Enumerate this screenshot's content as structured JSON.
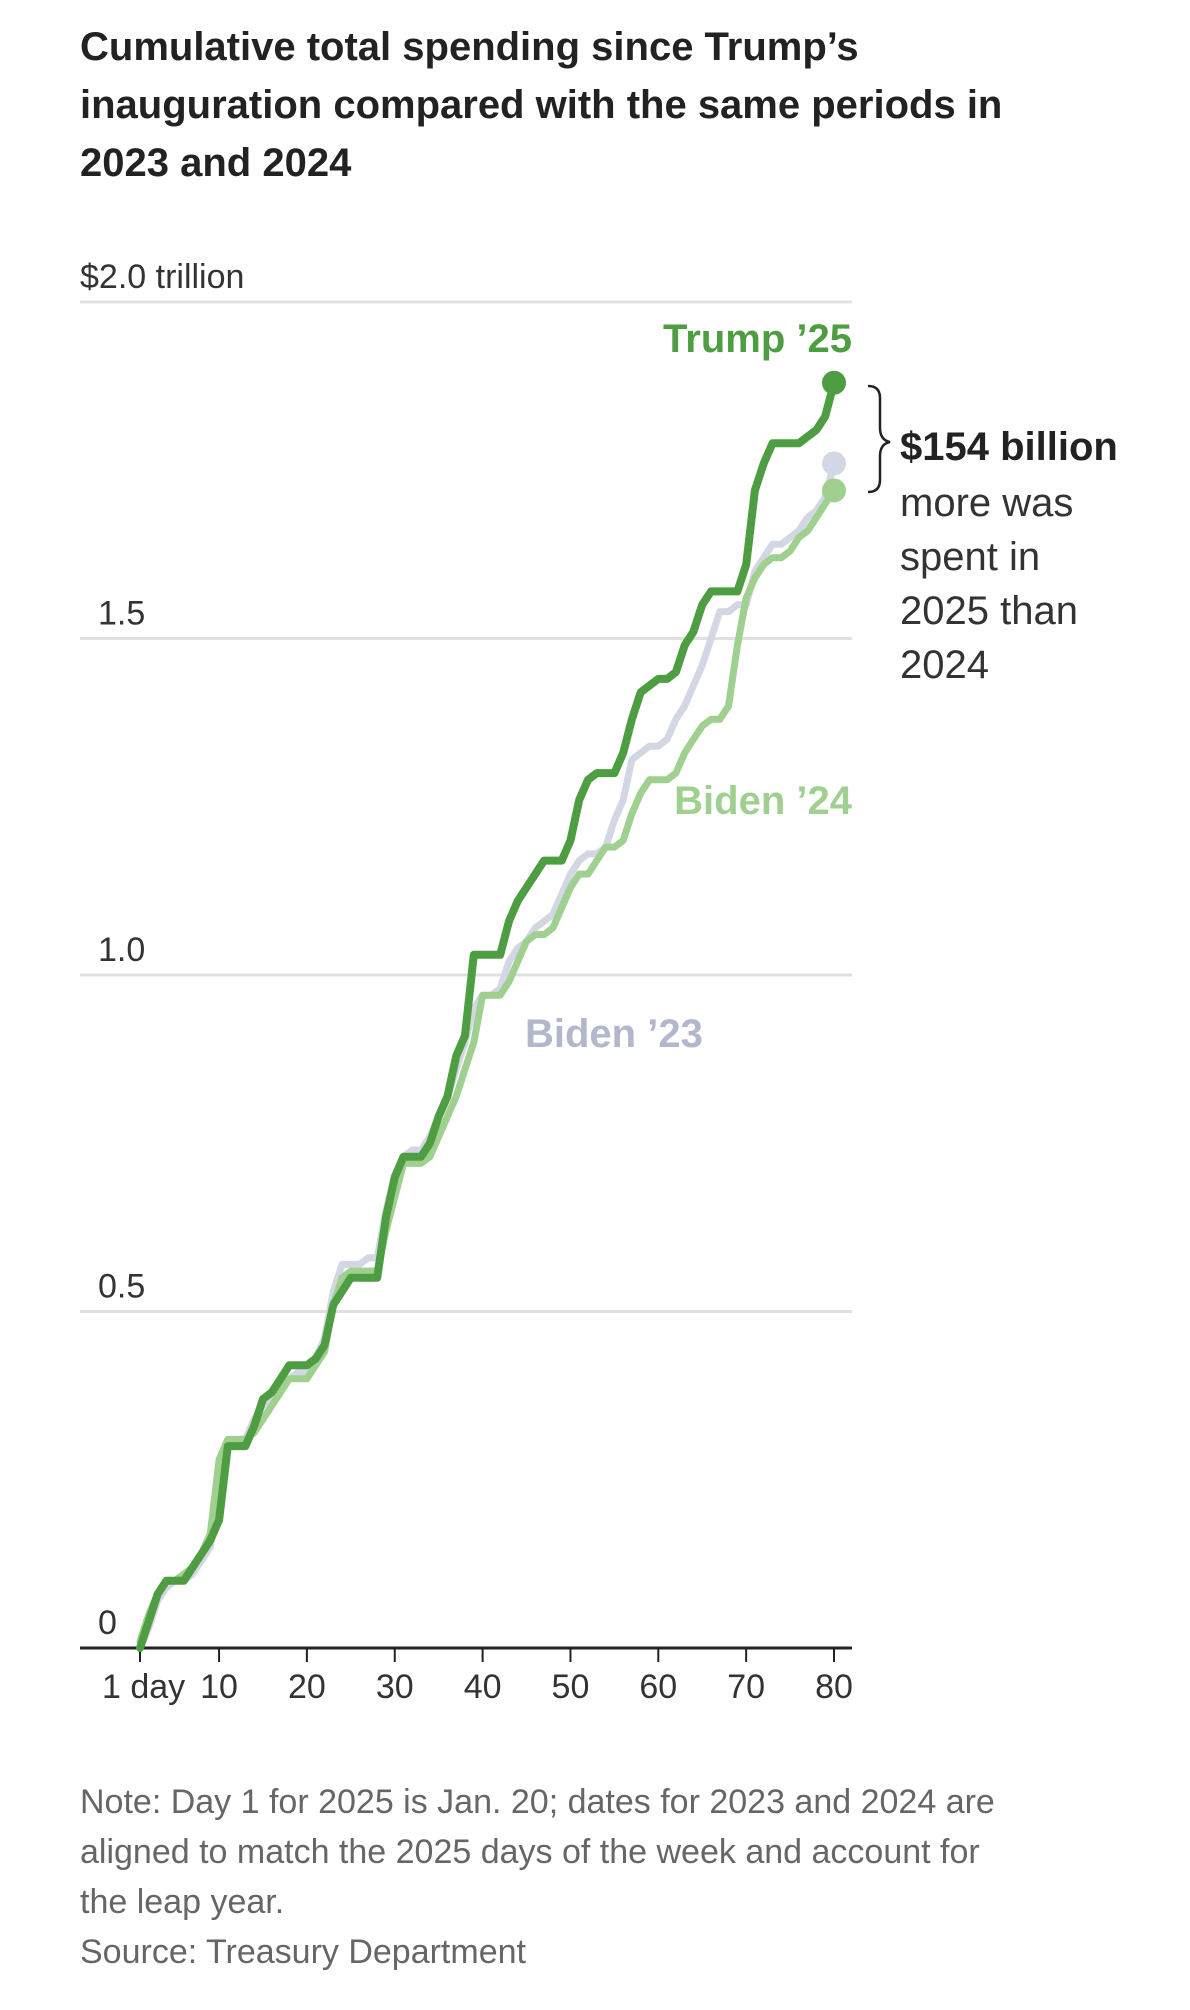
{
  "colors": {
    "trump": "#4f9d43",
    "biden24": "#9fd08f",
    "biden23": "#d3d7e3",
    "biden23_label": "#b2b7cc",
    "grid": "#e0e0e0",
    "axis": "#222222"
  },
  "chart_data": {
    "type": "line",
    "title_lines": [
      "Cumulative total spending since Trump’s",
      "inauguration compared with the same periods in",
      "2023 and 2024"
    ],
    "ylabel": "$2.0 trillion",
    "ylim": [
      0,
      2.0
    ],
    "yticks": [
      {
        "value": 0,
        "label": "0"
      },
      {
        "value": 0.5,
        "label": "0.5"
      },
      {
        "value": 1.0,
        "label": "1.0"
      },
      {
        "value": 1.5,
        "label": "1.5"
      },
      {
        "value": 2.0,
        "label": "$2.0 trillion"
      }
    ],
    "xlim": [
      1,
      81
    ],
    "xticks": [
      {
        "value": 1,
        "label": "1 day"
      },
      {
        "value": 10,
        "label": "10"
      },
      {
        "value": 20,
        "label": "20"
      },
      {
        "value": 30,
        "label": "30"
      },
      {
        "value": 40,
        "label": "40"
      },
      {
        "value": 50,
        "label": "50"
      },
      {
        "value": 60,
        "label": "60"
      },
      {
        "value": 70,
        "label": "70"
      },
      {
        "value": 80,
        "label": "80"
      }
    ],
    "series": [
      {
        "name": "Biden ’23",
        "key": "biden23",
        "x": [
          1,
          2,
          3,
          4,
          5,
          6,
          7,
          8,
          9,
          10,
          11,
          12,
          13,
          14,
          15,
          16,
          17,
          18,
          19,
          20,
          21,
          22,
          23,
          24,
          25,
          26,
          27,
          28,
          29,
          30,
          31,
          32,
          33,
          34,
          35,
          36,
          37,
          38,
          39,
          40,
          41,
          42,
          43,
          44,
          45,
          46,
          47,
          48,
          49,
          50,
          51,
          52,
          53,
          54,
          55,
          56,
          57,
          58,
          59,
          60,
          61,
          62,
          63,
          64,
          65,
          66,
          67,
          68,
          69,
          70,
          71,
          72,
          73,
          74,
          75,
          76,
          77,
          78,
          79,
          80
        ],
        "values": [
          0.0,
          0.03,
          0.07,
          0.09,
          0.1,
          0.1,
          0.11,
          0.13,
          0.15,
          0.24,
          0.3,
          0.31,
          0.31,
          0.34,
          0.36,
          0.37,
          0.39,
          0.4,
          0.41,
          0.41,
          0.43,
          0.46,
          0.53,
          0.57,
          0.57,
          0.57,
          0.58,
          0.58,
          0.65,
          0.7,
          0.73,
          0.74,
          0.74,
          0.76,
          0.79,
          0.82,
          0.86,
          0.9,
          0.95,
          0.97,
          0.97,
          0.98,
          1.02,
          1.04,
          1.05,
          1.07,
          1.08,
          1.09,
          1.12,
          1.15,
          1.17,
          1.18,
          1.18,
          1.19,
          1.23,
          1.26,
          1.32,
          1.33,
          1.34,
          1.34,
          1.35,
          1.38,
          1.4,
          1.43,
          1.46,
          1.5,
          1.54,
          1.54,
          1.55,
          1.55,
          1.6,
          1.62,
          1.64,
          1.64,
          1.65,
          1.66,
          1.68,
          1.69,
          1.71,
          1.76
        ]
      },
      {
        "name": "Biden ’24",
        "key": "biden24",
        "x": [
          1,
          2,
          3,
          4,
          5,
          6,
          7,
          8,
          9,
          10,
          11,
          12,
          13,
          14,
          15,
          16,
          17,
          18,
          19,
          20,
          21,
          22,
          23,
          24,
          25,
          26,
          27,
          28,
          29,
          30,
          31,
          32,
          33,
          34,
          35,
          36,
          37,
          38,
          39,
          40,
          41,
          42,
          43,
          44,
          45,
          46,
          47,
          48,
          49,
          50,
          51,
          52,
          53,
          54,
          55,
          56,
          57,
          58,
          59,
          60,
          61,
          62,
          63,
          64,
          65,
          66,
          67,
          68,
          69,
          70,
          71,
          72,
          73,
          74,
          75,
          76,
          77,
          78,
          79,
          80
        ],
        "values": [
          0.01,
          0.05,
          0.08,
          0.1,
          0.1,
          0.11,
          0.12,
          0.14,
          0.17,
          0.28,
          0.31,
          0.31,
          0.31,
          0.32,
          0.34,
          0.36,
          0.38,
          0.4,
          0.4,
          0.4,
          0.42,
          0.44,
          0.51,
          0.55,
          0.56,
          0.56,
          0.56,
          0.56,
          0.62,
          0.67,
          0.72,
          0.72,
          0.72,
          0.73,
          0.76,
          0.79,
          0.82,
          0.86,
          0.9,
          0.97,
          0.97,
          0.97,
          0.99,
          1.02,
          1.05,
          1.06,
          1.06,
          1.07,
          1.1,
          1.13,
          1.15,
          1.15,
          1.17,
          1.19,
          1.19,
          1.2,
          1.24,
          1.27,
          1.29,
          1.29,
          1.29,
          1.3,
          1.33,
          1.35,
          1.37,
          1.38,
          1.38,
          1.4,
          1.49,
          1.56,
          1.59,
          1.61,
          1.62,
          1.62,
          1.63,
          1.65,
          1.66,
          1.68,
          1.7,
          1.72
        ]
      },
      {
        "name": "Trump ’25",
        "key": "trump",
        "x": [
          1,
          2,
          3,
          4,
          5,
          6,
          7,
          8,
          9,
          10,
          11,
          12,
          13,
          14,
          15,
          16,
          17,
          18,
          19,
          20,
          21,
          22,
          23,
          24,
          25,
          26,
          27,
          28,
          29,
          30,
          31,
          32,
          33,
          34,
          35,
          36,
          37,
          38,
          39,
          40,
          41,
          42,
          43,
          44,
          45,
          46,
          47,
          48,
          49,
          50,
          51,
          52,
          53,
          54,
          55,
          56,
          57,
          58,
          59,
          60,
          61,
          62,
          63,
          64,
          65,
          66,
          67,
          68,
          69,
          70,
          71,
          72,
          73,
          74,
          75,
          76,
          77,
          78,
          79,
          80
        ],
        "values": [
          0.0,
          0.04,
          0.08,
          0.1,
          0.1,
          0.1,
          0.12,
          0.14,
          0.16,
          0.19,
          0.3,
          0.3,
          0.3,
          0.33,
          0.37,
          0.38,
          0.4,
          0.42,
          0.42,
          0.42,
          0.43,
          0.45,
          0.51,
          0.53,
          0.55,
          0.55,
          0.55,
          0.55,
          0.64,
          0.7,
          0.73,
          0.73,
          0.73,
          0.75,
          0.79,
          0.82,
          0.88,
          0.91,
          1.03,
          1.03,
          1.03,
          1.03,
          1.08,
          1.11,
          1.13,
          1.15,
          1.17,
          1.17,
          1.17,
          1.2,
          1.26,
          1.29,
          1.3,
          1.3,
          1.3,
          1.33,
          1.38,
          1.42,
          1.43,
          1.44,
          1.44,
          1.45,
          1.49,
          1.51,
          1.55,
          1.57,
          1.57,
          1.57,
          1.57,
          1.61,
          1.72,
          1.76,
          1.79,
          1.79,
          1.79,
          1.79,
          1.8,
          1.81,
          1.83,
          1.88
        ]
      }
    ],
    "series_labels": {
      "trump": "Trump ’25",
      "biden24": "Biden ’24",
      "biden23": "Biden ’23"
    },
    "annotation": {
      "value": "$154 billion",
      "lines": [
        "more was",
        "spent in",
        "2025 than",
        "2024"
      ]
    },
    "note_lines": [
      "Note: Day 1 for 2025 is Jan. 20; dates for 2023 and 2024 are",
      "aligned to match the 2025 days of the week and account for",
      "the leap year."
    ],
    "source": "Source: Treasury Department"
  }
}
